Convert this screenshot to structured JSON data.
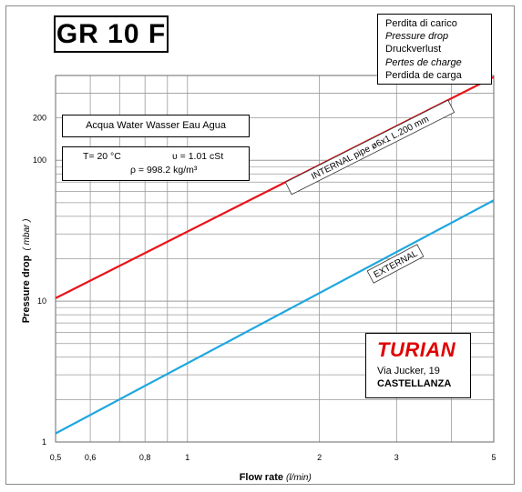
{
  "title_box": "GR 10 F",
  "legend_lines": [
    {
      "text": "Perdita di carico",
      "italic": false
    },
    {
      "text": "Pressure drop",
      "italic": true
    },
    {
      "text": "Druckverlust",
      "italic": false
    },
    {
      "text": "Pertes de charge",
      "italic": true
    },
    {
      "text": "Perdida de carga",
      "italic": false
    }
  ],
  "fluid": "Acqua  Water  Wasser  Eau  Agua",
  "props": {
    "temp": "T= 20 °C",
    "visc": "υ = 1.01  cSt",
    "dens": "ρ = 998.2  kg/m³"
  },
  "company": {
    "name": "TURIAN",
    "address": "Via Jucker, 19",
    "city": "CASTELLANZA"
  },
  "chart_data": {
    "type": "line",
    "xlabel": "Flow rate",
    "xunit": "(l/min)",
    "ylabel": "Pressure drop",
    "yunit": "( mbar )",
    "xscale": "log",
    "yscale": "log",
    "xlim": [
      0.5,
      5
    ],
    "ylim": [
      1,
      400
    ],
    "grid": true,
    "x_ticks": [
      {
        "value": 0.5,
        "label": "0,5"
      },
      {
        "value": 0.6,
        "label": "0,6"
      },
      {
        "value": 0.8,
        "label": "0,8"
      },
      {
        "value": 1,
        "label": "1"
      },
      {
        "value": 2,
        "label": "2"
      },
      {
        "value": 3,
        "label": "3"
      },
      {
        "value": 5,
        "label": "5"
      }
    ],
    "y_ticks": [
      {
        "value": 1,
        "label": "1"
      },
      {
        "value": 10,
        "label": "10"
      },
      {
        "value": 100,
        "label": "100"
      },
      {
        "value": 200,
        "label": "200"
      }
    ],
    "series": [
      {
        "name": "INTERNAL  pipe ø6x1 L.200 mm",
        "color": "#e8141a",
        "x": [
          0.5,
          5
        ],
        "y": [
          10.5,
          390
        ]
      },
      {
        "name": "EXTERNAL",
        "color": "#1fa7e0",
        "x": [
          0.5,
          5
        ],
        "y": [
          1.15,
          52
        ]
      }
    ]
  }
}
